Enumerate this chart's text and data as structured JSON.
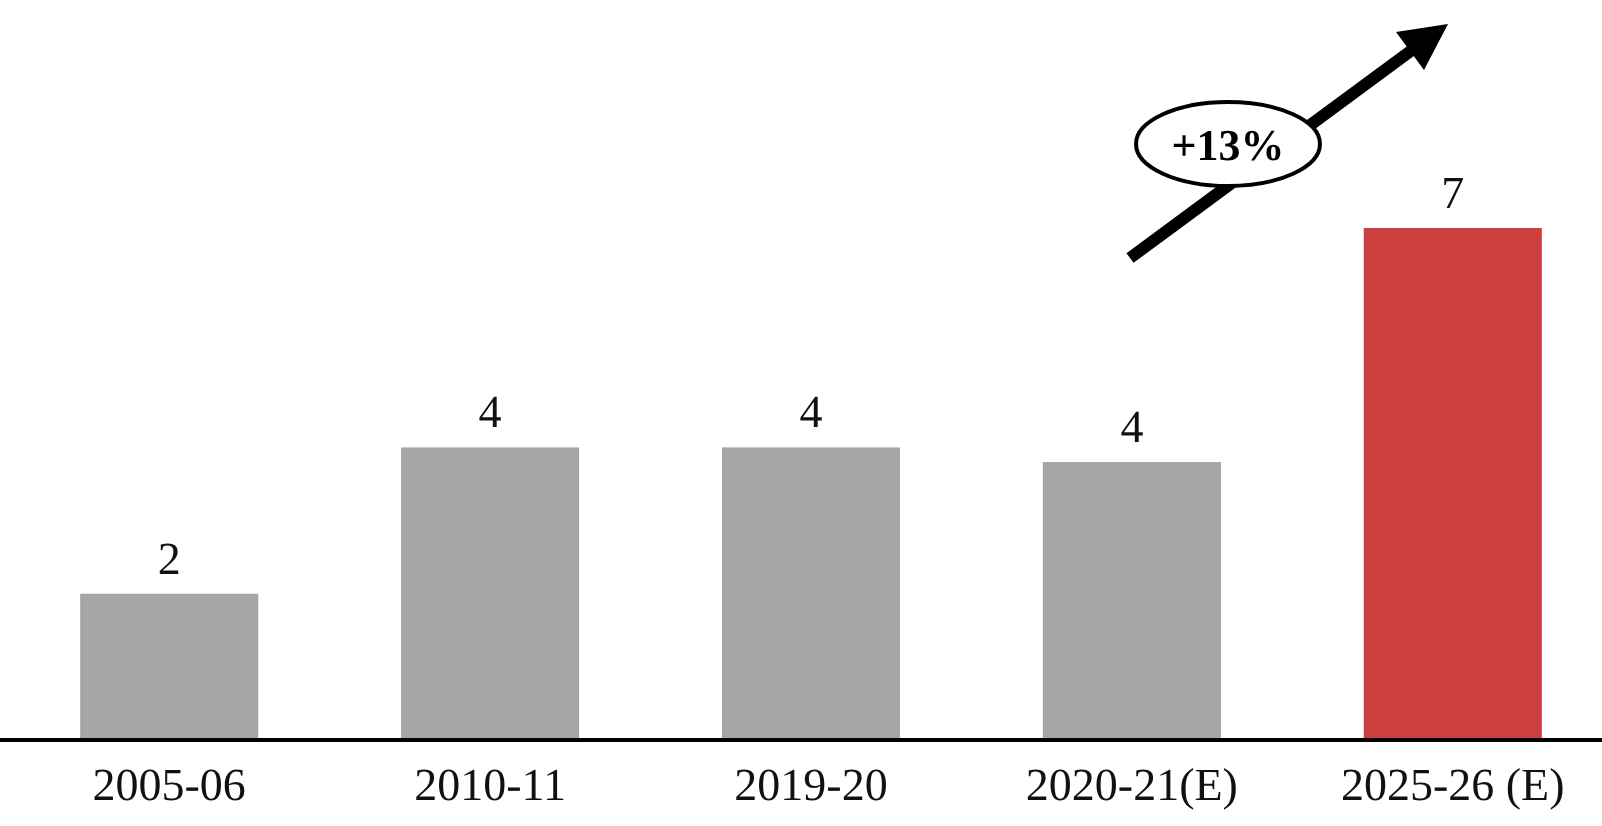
{
  "chart_data": {
    "type": "bar",
    "categories": [
      "2005-06",
      "2010-11",
      "2019-20",
      "2020-21(E)",
      "2025-26 (E)"
    ],
    "values": [
      2,
      4,
      4,
      3.8,
      7
    ],
    "value_labels": [
      "2",
      "4",
      "4",
      "4",
      "7"
    ],
    "colors": [
      "#a5a5a5",
      "#a5a5a5",
      "#a5a5a5",
      "#a5a5a5",
      "#cc3f3e"
    ],
    "annotations": [
      "+13%"
    ]
  }
}
